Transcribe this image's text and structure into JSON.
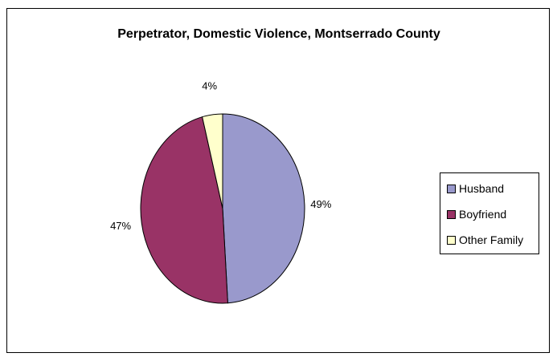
{
  "chart_data": {
    "type": "pie",
    "title": "Perpetrator, Domestic Violence, Montserrado County",
    "categories": [
      "Husband",
      "Boyfriend",
      "Other Family"
    ],
    "values": [
      49,
      47,
      4
    ],
    "labels": [
      "49%",
      "47%",
      "4%"
    ],
    "colors": [
      "#9999CC",
      "#993366",
      "#FFFFCC"
    ],
    "legend_position": "right"
  }
}
